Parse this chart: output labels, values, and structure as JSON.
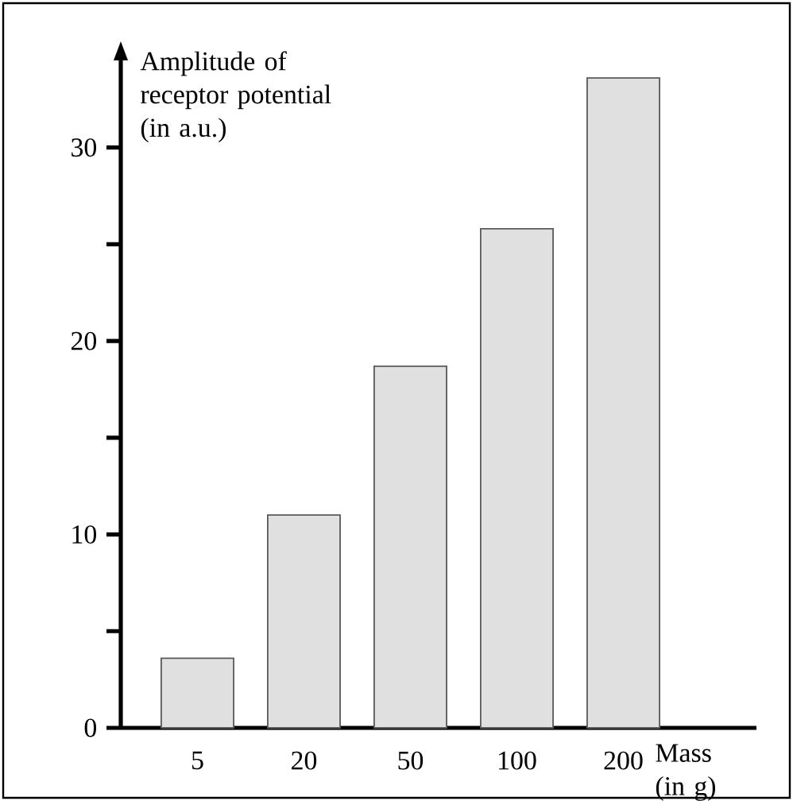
{
  "chart_data": {
    "type": "bar",
    "xlabel": "Mass (in g)",
    "ylabel": "Amplitude of receptor potential (in a.u.)",
    "categories": [
      "5",
      "20",
      "50",
      "100",
      "200"
    ],
    "values": [
      3.6,
      11.0,
      18.7,
      25.8,
      33.6
    ],
    "color": "#e0e0e0",
    "ylim": [
      0,
      35
    ],
    "yticks": [
      0,
      {
        "value": 5,
        "label": null
      },
      10,
      {
        "value": 15,
        "label": null
      },
      20,
      {
        "value": 25,
        "label": null
      },
      30
    ],
    "grid": false
  }
}
